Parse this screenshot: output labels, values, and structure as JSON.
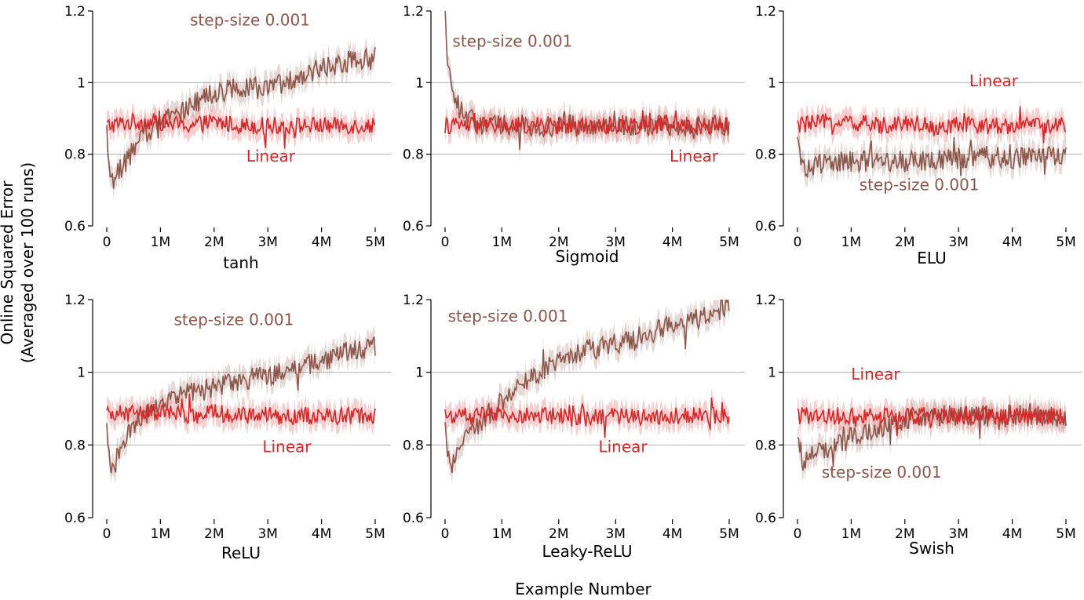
{
  "figure": {
    "ylabel_line1": "Online Squared Error",
    "ylabel_line2": "(Averaged over 100 runs)",
    "xlabel": "Example Number"
  },
  "colors": {
    "linear": "#d62728",
    "stepsize": "#8c564b",
    "grid": "#b0b0b0",
    "axis": "#000000"
  },
  "chart_data": [
    {
      "type": "line",
      "title": "tanh",
      "xlim": [
        0,
        5000000
      ],
      "ylim": [
        0.6,
        1.2
      ],
      "x_ticks": [
        0,
        1000000,
        2000000,
        3000000,
        4000000,
        5000000
      ],
      "x_tick_labels": [
        "0",
        "1M",
        "2M",
        "3M",
        "4M",
        "5M"
      ],
      "y_ticks": [
        0.6,
        0.8,
        1.0,
        1.2
      ],
      "y_tick_labels": [
        "0.6",
        "0.8",
        "1",
        "1.2"
      ],
      "grid_y": [
        0.8,
        1.0
      ],
      "series": [
        {
          "name": "Linear",
          "label_x": 2600000,
          "label_y": 0.78,
          "x": [
            0,
            500000,
            1000000,
            1500000,
            2000000,
            2500000,
            3000000,
            3500000,
            4000000,
            4500000,
            5000000
          ],
          "values": [
            0.88,
            0.89,
            0.89,
            0.88,
            0.89,
            0.88,
            0.88,
            0.88,
            0.88,
            0.88,
            0.88
          ]
        },
        {
          "name": "step-size 0.001",
          "label_x": 1550000,
          "label_y": 1.16,
          "x": [
            0,
            100000,
            300000,
            600000,
            1000000,
            1500000,
            2000000,
            2500000,
            3000000,
            3500000,
            4000000,
            4500000,
            5000000
          ],
          "values": [
            0.82,
            0.72,
            0.77,
            0.83,
            0.9,
            0.93,
            0.97,
            0.99,
            0.98,
            1.01,
            1.04,
            1.06,
            1.07
          ]
        }
      ]
    },
    {
      "type": "line",
      "title": "Sigmoid",
      "xlim": [
        0,
        5000000
      ],
      "ylim": [
        0.6,
        1.2
      ],
      "x_ticks": [
        0,
        1000000,
        2000000,
        3000000,
        4000000,
        5000000
      ],
      "x_tick_labels": [
        "0",
        "1M",
        "2M",
        "3M",
        "4M",
        "5M"
      ],
      "y_ticks": [
        0.6,
        0.8,
        1.0,
        1.2
      ],
      "y_tick_labels": [
        "0.6",
        "0.8",
        "1",
        "1.2"
      ],
      "grid_y": [
        0.8,
        1.0
      ],
      "series": [
        {
          "name": "Linear",
          "label_x": 3950000,
          "label_y": 0.78,
          "x": [
            0,
            500000,
            1000000,
            1500000,
            2000000,
            2500000,
            3000000,
            3500000,
            4000000,
            4500000,
            5000000
          ],
          "values": [
            0.88,
            0.88,
            0.88,
            0.88,
            0.88,
            0.88,
            0.88,
            0.88,
            0.88,
            0.88,
            0.88
          ]
        },
        {
          "name": "step-size 0.001",
          "label_x": 130000,
          "label_y": 1.1,
          "x": [
            0,
            30000,
            80000,
            150000,
            250000,
            400000,
            700000,
            1000000,
            2000000,
            3000000,
            4000000,
            5000000
          ],
          "values": [
            1.2,
            1.1,
            1.02,
            0.98,
            0.93,
            0.9,
            0.88,
            0.88,
            0.88,
            0.88,
            0.88,
            0.88
          ]
        }
      ]
    },
    {
      "type": "line",
      "title": "ELU",
      "xlim": [
        0,
        5000000
      ],
      "ylim": [
        0.6,
        1.2
      ],
      "x_ticks": [
        0,
        1000000,
        2000000,
        3000000,
        4000000,
        5000000
      ],
      "x_tick_labels": [
        "0",
        "1M",
        "2M",
        "3M",
        "4M",
        "5M"
      ],
      "y_ticks": [
        0.6,
        0.8,
        1.0,
        1.2
      ],
      "y_tick_labels": [
        "0.6",
        "0.8",
        "1",
        "1.2"
      ],
      "grid_y": [
        0.8,
        1.0
      ],
      "series": [
        {
          "name": "Linear",
          "label_x": 3200000,
          "label_y": 0.99,
          "x": [
            0,
            500000,
            1000000,
            1500000,
            2000000,
            2500000,
            3000000,
            3500000,
            4000000,
            4500000,
            5000000
          ],
          "values": [
            0.88,
            0.89,
            0.89,
            0.88,
            0.89,
            0.88,
            0.88,
            0.88,
            0.88,
            0.88,
            0.88
          ]
        },
        {
          "name": "step-size 0.001",
          "label_x": 1150000,
          "label_y": 0.7,
          "x": [
            0,
            100000,
            300000,
            600000,
            1000000,
            1500000,
            2000000,
            2500000,
            3000000,
            3500000,
            4000000,
            4500000,
            5000000
          ],
          "values": [
            0.83,
            0.76,
            0.77,
            0.78,
            0.78,
            0.78,
            0.78,
            0.78,
            0.79,
            0.79,
            0.79,
            0.79,
            0.8
          ]
        }
      ]
    },
    {
      "type": "line",
      "title": "ReLU",
      "xlim": [
        0,
        5000000
      ],
      "ylim": [
        0.6,
        1.2
      ],
      "x_ticks": [
        0,
        1000000,
        2000000,
        3000000,
        4000000,
        5000000
      ],
      "x_tick_labels": [
        "0",
        "1M",
        "2M",
        "3M",
        "4M",
        "5M"
      ],
      "y_ticks": [
        0.6,
        0.8,
        1.0,
        1.2
      ],
      "y_tick_labels": [
        "0.6",
        "0.8",
        "1",
        "1.2"
      ],
      "grid_y": [
        0.8,
        1.0
      ],
      "series": [
        {
          "name": "Linear",
          "label_x": 2900000,
          "label_y": 0.78,
          "x": [
            0,
            500000,
            1000000,
            1500000,
            2000000,
            2500000,
            3000000,
            3500000,
            4000000,
            4500000,
            5000000
          ],
          "values": [
            0.88,
            0.89,
            0.89,
            0.88,
            0.89,
            0.88,
            0.88,
            0.88,
            0.88,
            0.88,
            0.88
          ]
        },
        {
          "name": "step-size 0.001",
          "label_x": 1250000,
          "label_y": 1.13,
          "x": [
            0,
            100000,
            300000,
            600000,
            1000000,
            1500000,
            2000000,
            2500000,
            3000000,
            3500000,
            4000000,
            4500000,
            5000000
          ],
          "values": [
            0.84,
            0.73,
            0.8,
            0.87,
            0.92,
            0.94,
            0.96,
            0.98,
            0.99,
            1.01,
            1.03,
            1.06,
            1.07
          ]
        }
      ]
    },
    {
      "type": "line",
      "title": "Leaky-ReLU",
      "xlim": [
        0,
        5000000
      ],
      "ylim": [
        0.6,
        1.2
      ],
      "x_ticks": [
        0,
        1000000,
        2000000,
        3000000,
        4000000,
        5000000
      ],
      "x_tick_labels": [
        "0",
        "1M",
        "2M",
        "3M",
        "4M",
        "5M"
      ],
      "y_ticks": [
        0.6,
        0.8,
        1.0,
        1.2
      ],
      "y_tick_labels": [
        "0.6",
        "0.8",
        "1",
        "1.2"
      ],
      "grid_y": [
        0.8,
        1.0
      ],
      "series": [
        {
          "name": "Linear",
          "label_x": 2700000,
          "label_y": 0.78,
          "x": [
            0,
            500000,
            1000000,
            1500000,
            2000000,
            2500000,
            3000000,
            3500000,
            4000000,
            4500000,
            5000000
          ],
          "values": [
            0.88,
            0.88,
            0.88,
            0.88,
            0.88,
            0.88,
            0.88,
            0.88,
            0.88,
            0.88,
            0.88
          ]
        },
        {
          "name": "step-size 0.001",
          "label_x": 50000,
          "label_y": 1.14,
          "x": [
            0,
            100000,
            300000,
            600000,
            1000000,
            1500000,
            2000000,
            2500000,
            3000000,
            3500000,
            4000000,
            4500000,
            5000000
          ],
          "values": [
            0.84,
            0.73,
            0.8,
            0.86,
            0.92,
            0.98,
            1.03,
            1.06,
            1.08,
            1.1,
            1.13,
            1.15,
            1.18
          ]
        }
      ]
    },
    {
      "type": "line",
      "title": "Swish",
      "xlim": [
        0,
        5000000
      ],
      "ylim": [
        0.6,
        1.2
      ],
      "x_ticks": [
        0,
        1000000,
        2000000,
        3000000,
        4000000,
        5000000
      ],
      "x_tick_labels": [
        "0",
        "1M",
        "2M",
        "3M",
        "4M",
        "5M"
      ],
      "y_ticks": [
        0.6,
        0.8,
        1.0,
        1.2
      ],
      "y_tick_labels": [
        "0.6",
        "0.8",
        "1",
        "1.2"
      ],
      "grid_y": [
        0.8,
        1.0
      ],
      "series": [
        {
          "name": "Linear",
          "label_x": 1000000,
          "label_y": 0.98,
          "x": [
            0,
            500000,
            1000000,
            1500000,
            2000000,
            2500000,
            3000000,
            3500000,
            4000000,
            4500000,
            5000000
          ],
          "values": [
            0.88,
            0.88,
            0.88,
            0.88,
            0.88,
            0.88,
            0.88,
            0.88,
            0.88,
            0.88,
            0.88
          ]
        },
        {
          "name": "step-size 0.001",
          "label_x": 450000,
          "label_y": 0.71,
          "x": [
            0,
            100000,
            300000,
            600000,
            1000000,
            1500000,
            2000000,
            2500000,
            3000000,
            3500000,
            4000000,
            4500000,
            5000000
          ],
          "values": [
            0.84,
            0.75,
            0.77,
            0.79,
            0.82,
            0.85,
            0.87,
            0.88,
            0.88,
            0.88,
            0.88,
            0.88,
            0.88
          ]
        }
      ]
    }
  ]
}
